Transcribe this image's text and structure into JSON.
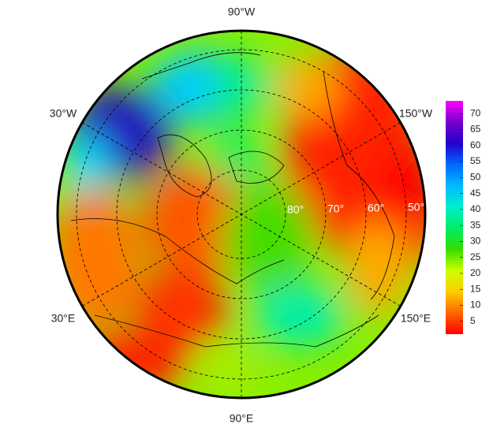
{
  "map": {
    "meridian_labels": [
      "90°W",
      "30°W",
      "150°W",
      "30°E",
      "150°E",
      "90°E"
    ],
    "latitude_circles": [
      {
        "value": 80,
        "label": "80°"
      },
      {
        "value": 70,
        "label": "70°"
      },
      {
        "value": 60,
        "label": "60°"
      },
      {
        "value": 50,
        "label": "50°"
      }
    ],
    "colorbar": {
      "lim": [
        1,
        74
      ],
      "ticks": [
        5,
        10,
        15,
        20,
        25,
        30,
        35,
        40,
        45,
        50,
        55,
        60,
        65,
        70
      ],
      "colors": [
        "#ff0000",
        "#ff6600",
        "#ffcc00",
        "#ccff00",
        "#33dd00",
        "#00ee66",
        "#00eecc",
        "#00bbff",
        "#0066ff",
        "#2200cc",
        "#7700cc",
        "#ff00ff"
      ]
    }
  }
}
